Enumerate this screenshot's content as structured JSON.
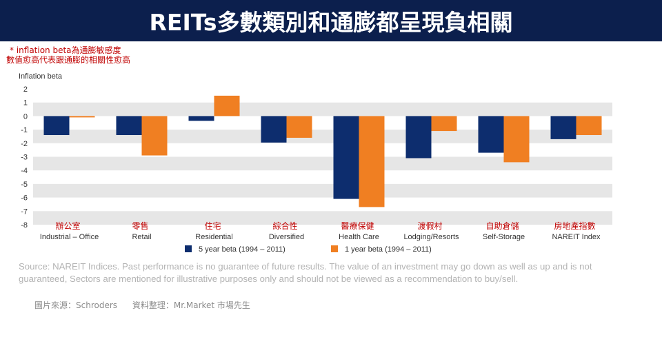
{
  "title": "REITs多數類別和通膨都呈現負相關",
  "note": {
    "line1": "* inflation  beta為通膨敏感度",
    "line2": "數值愈高代表跟通膨的相關性愈高"
  },
  "source_text": "Source: NAREIT Indices. Past performance is no guarantee of future results. The value of an investment may go down as well as up and is not guaranteed, Sectors are mentioned for illustrative purposes only and should not be viewed as a recommendation to buy/sell.",
  "credit": {
    "image_source": "圖片來源：Schroders",
    "compiled_by": "資料整理：Mr.Market  市場先生"
  },
  "colors": {
    "banner": "#0c1f4d",
    "series_5yr": "#0d2d6e",
    "series_1yr": "#f07f22",
    "band": "#e6e6e6",
    "chinese_label": "#c00000"
  },
  "chart_data": {
    "type": "bar",
    "ylabel": "Inflation beta",
    "ylim": [
      -8,
      2
    ],
    "yticks": [
      2,
      1,
      0,
      -1,
      -2,
      -3,
      -4,
      -5,
      -6,
      -7,
      -8
    ],
    "categories": [
      "Industrial – Office",
      "Retail",
      "Residential",
      "Diversified",
      "Health Care",
      "Lodging/Resorts",
      "Self-Storage",
      "NAREIT Index"
    ],
    "categories_zh": [
      "辦公室",
      "零售",
      "住宅",
      "綜合性",
      "醫療保健",
      "渡假村",
      "自助倉儲",
      "房地產指數"
    ],
    "series": [
      {
        "name": "5 year beta (1994 – 2011)",
        "values": [
          -1.4,
          -1.4,
          -0.35,
          -1.95,
          -6.1,
          -3.1,
          -2.7,
          -1.7
        ]
      },
      {
        "name": "1 year beta (1994 – 2011)",
        "values": [
          -0.1,
          -2.9,
          1.5,
          -1.6,
          -6.7,
          -1.1,
          -3.4,
          -1.4
        ]
      }
    ],
    "legend_position": "bottom",
    "grid": "alternating horizontal bands"
  }
}
